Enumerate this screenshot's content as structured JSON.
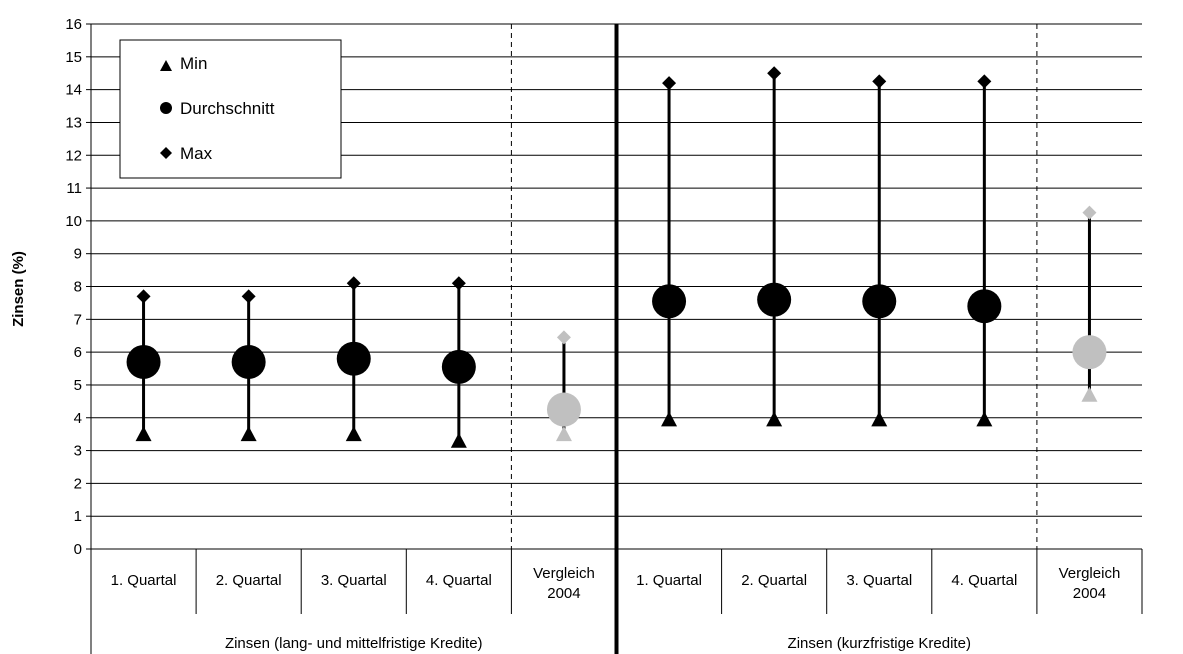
{
  "chart_data": {
    "type": "scatter",
    "ylabel": "Zinsen (%)",
    "ylim": [
      0,
      16
    ],
    "y_ticks": [
      "0",
      "1",
      "2",
      "3",
      "4",
      "5",
      "6",
      "7",
      "8",
      "9",
      "10",
      "11",
      "12",
      "13",
      "14",
      "15",
      "16"
    ],
    "grid": "horizontal",
    "legend": {
      "placement": "top-left",
      "entries": [
        {
          "name": "Min",
          "marker": "triangle"
        },
        {
          "name": "Durchschnitt",
          "marker": "circle"
        },
        {
          "name": "Max",
          "marker": "diamond"
        }
      ]
    },
    "groups": [
      {
        "label": "Zinsen (lang- und mittelfristige Kredite)",
        "categories": [
          {
            "label": [
              "1. Quartal"
            ],
            "min": 3.5,
            "avg": 5.7,
            "max": 7.7,
            "comparison": false
          },
          {
            "label": [
              "2. Quartal"
            ],
            "min": 3.5,
            "avg": 5.7,
            "max": 7.7,
            "comparison": false
          },
          {
            "label": [
              "3. Quartal"
            ],
            "min": 3.5,
            "avg": 5.8,
            "max": 8.1,
            "comparison": false
          },
          {
            "label": [
              "4. Quartal"
            ],
            "min": 3.3,
            "avg": 5.55,
            "max": 8.1,
            "comparison": false
          },
          {
            "label": [
              "Vergleich",
              "2004"
            ],
            "min": 3.5,
            "avg": 4.25,
            "max": 6.45,
            "comparison": true
          }
        ]
      },
      {
        "label": "Zinsen (kurzfristige Kredite)",
        "categories": [
          {
            "label": [
              "1. Quartal"
            ],
            "min": 3.95,
            "avg": 7.55,
            "max": 14.2,
            "comparison": false
          },
          {
            "label": [
              "2. Quartal"
            ],
            "min": 3.95,
            "avg": 7.6,
            "max": 14.5,
            "comparison": false
          },
          {
            "label": [
              "3. Quartal"
            ],
            "min": 3.95,
            "avg": 7.55,
            "max": 14.25,
            "comparison": false
          },
          {
            "label": [
              "4. Quartal"
            ],
            "min": 3.95,
            "avg": 7.4,
            "max": 14.25,
            "comparison": false
          },
          {
            "label": [
              "Vergleich",
              "2004"
            ],
            "min": 4.7,
            "avg": 6.0,
            "max": 10.25,
            "comparison": true
          }
        ]
      }
    ],
    "colors": {
      "main": "#000000",
      "comparison": "#c0c0c0",
      "grid": "#000000"
    }
  }
}
